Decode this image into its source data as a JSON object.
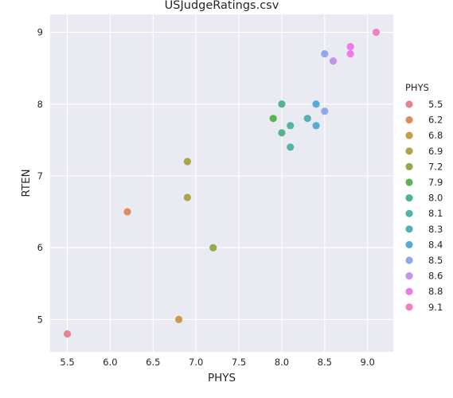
{
  "chart_data": {
    "type": "scatter",
    "title": "USJudgeRatings.csv",
    "xlabel": "PHYS",
    "ylabel": "RTEN",
    "xlim": [
      5.3,
      9.3
    ],
    "ylim": [
      4.55,
      9.25
    ],
    "xticks": [
      "5.5",
      "6.0",
      "6.5",
      "7.0",
      "7.5",
      "8.0",
      "8.5",
      "9.0"
    ],
    "yticks": [
      "5",
      "6",
      "7",
      "8",
      "9"
    ],
    "grid": true,
    "legend_position": "right",
    "legend": {
      "title": "PHYS",
      "entries": [
        {
          "label": "5.5",
          "color": "#e88491"
        },
        {
          "label": "6.2",
          "color": "#e08c5a"
        },
        {
          "label": "6.8",
          "color": "#c89d4a"
        },
        {
          "label": "6.9",
          "color": "#afa24a"
        },
        {
          "label": "7.2",
          "color": "#92ab4a"
        },
        {
          "label": "7.9",
          "color": "#5bb356"
        },
        {
          "label": "8.0",
          "color": "#52b48e"
        },
        {
          "label": "8.1",
          "color": "#53b3a4"
        },
        {
          "label": "8.3",
          "color": "#55afb9"
        },
        {
          "label": "8.4",
          "color": "#59aad6"
        },
        {
          "label": "8.5",
          "color": "#92a6ea"
        },
        {
          "label": "8.6",
          "color": "#c294ea"
        },
        {
          "label": "8.8",
          "color": "#ee7ae7"
        },
        {
          "label": "9.1",
          "color": "#ef80c4"
        }
      ]
    },
    "series": [
      {
        "name": "5.5",
        "points": [
          [
            5.5,
            4.8
          ]
        ]
      },
      {
        "name": "6.2",
        "points": [
          [
            6.2,
            6.5
          ]
        ]
      },
      {
        "name": "6.8",
        "points": [
          [
            6.8,
            5.0
          ]
        ]
      },
      {
        "name": "6.9",
        "points": [
          [
            6.9,
            7.2
          ],
          [
            6.9,
            6.7
          ]
        ]
      },
      {
        "name": "7.2",
        "points": [
          [
            7.2,
            6.0
          ]
        ]
      },
      {
        "name": "7.9",
        "points": [
          [
            7.9,
            7.8
          ]
        ]
      },
      {
        "name": "8.0",
        "points": [
          [
            8.0,
            8.0
          ],
          [
            8.0,
            7.6
          ]
        ]
      },
      {
        "name": "8.1",
        "points": [
          [
            8.1,
            7.7
          ],
          [
            8.1,
            7.4
          ]
        ]
      },
      {
        "name": "8.3",
        "points": [
          [
            8.3,
            7.8
          ]
        ]
      },
      {
        "name": "8.4",
        "points": [
          [
            8.4,
            8.0
          ],
          [
            8.4,
            7.7
          ]
        ]
      },
      {
        "name": "8.5",
        "points": [
          [
            8.5,
            8.7
          ],
          [
            8.5,
            7.9
          ]
        ]
      },
      {
        "name": "8.6",
        "points": [
          [
            8.6,
            8.6
          ]
        ]
      },
      {
        "name": "8.8",
        "points": [
          [
            8.8,
            8.8
          ],
          [
            8.8,
            8.7
          ]
        ]
      },
      {
        "name": "9.1",
        "points": [
          [
            9.1,
            9.0
          ]
        ]
      }
    ]
  },
  "colors": {
    "plot_background": "#eaeaf2",
    "grid": "#ffffff",
    "text": "#262626"
  }
}
